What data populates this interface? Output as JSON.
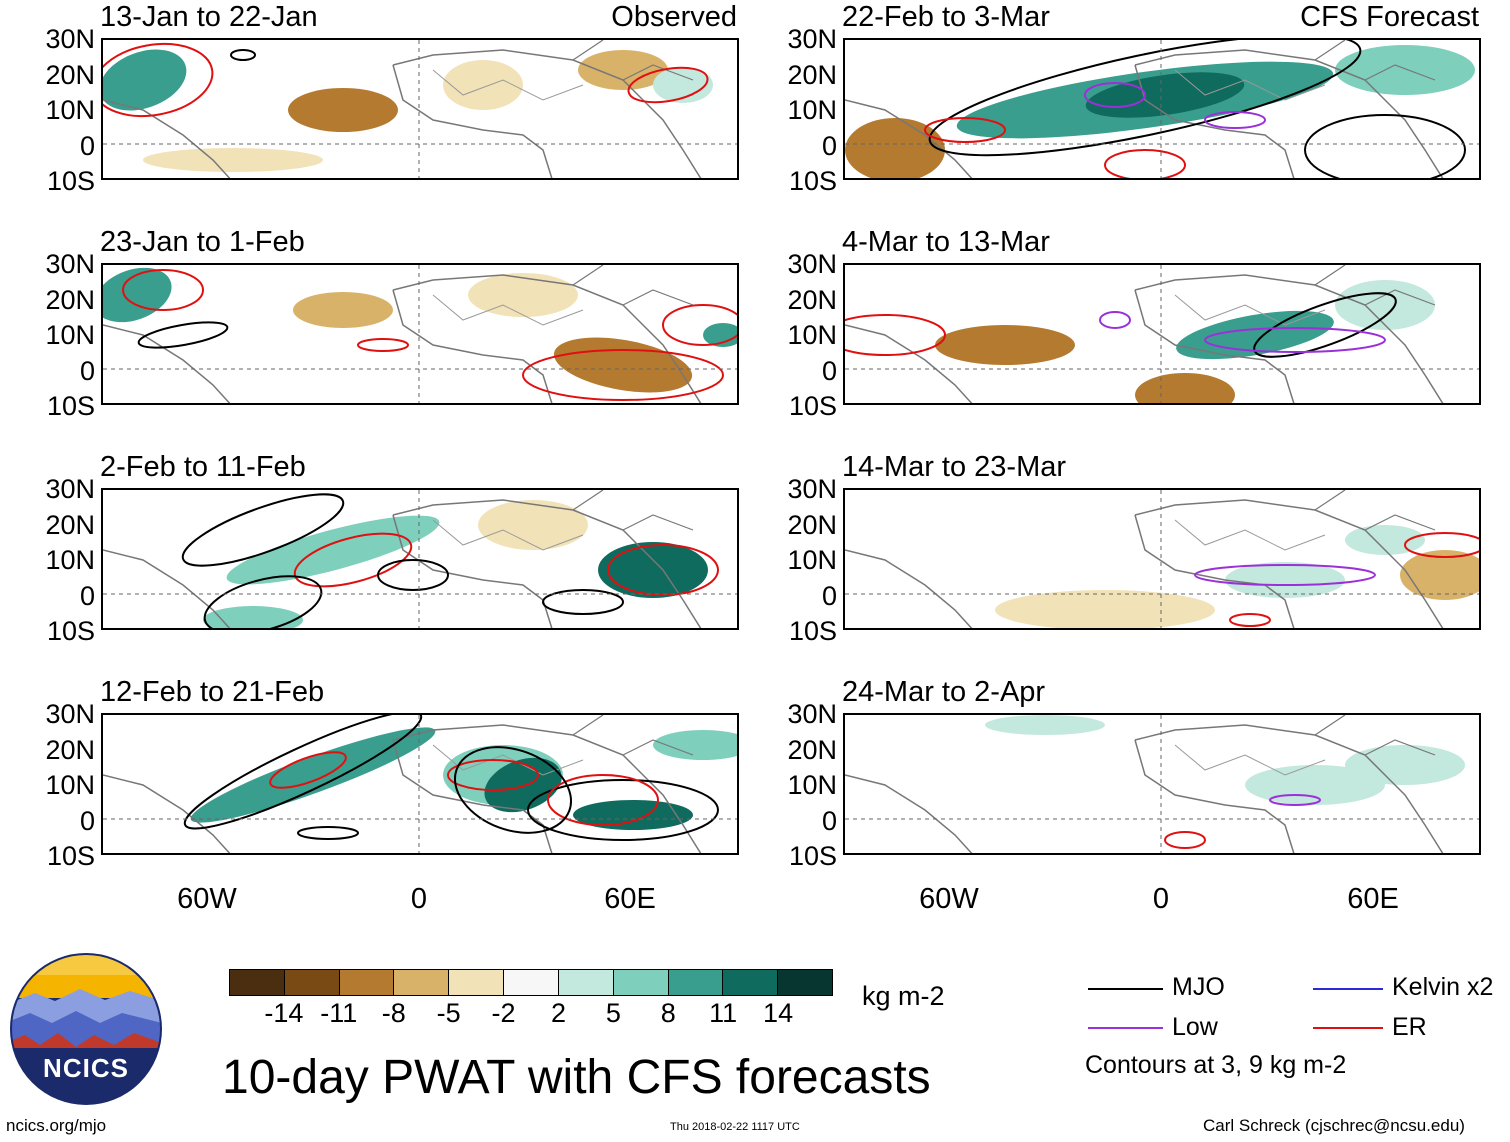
{
  "panels_left": [
    {
      "title": "13-Jan to 22-Jan",
      "tag": "Observed"
    },
    {
      "title": "23-Jan to 1-Feb",
      "tag": ""
    },
    {
      "title": "2-Feb to 11-Feb",
      "tag": ""
    },
    {
      "title": "12-Feb to 21-Feb",
      "tag": ""
    }
  ],
  "panels_right": [
    {
      "title": "22-Feb to 3-Mar",
      "tag": "CFS Forecast"
    },
    {
      "title": "4-Mar to 13-Mar",
      "tag": ""
    },
    {
      "title": "14-Mar to 23-Mar",
      "tag": ""
    },
    {
      "title": "24-Mar to 2-Apr",
      "tag": ""
    }
  ],
  "lat_labels": [
    "30N",
    "20N",
    "10N",
    "0",
    "10S"
  ],
  "lon_labels": [
    "60W",
    "0",
    "60E"
  ],
  "colorbar": {
    "colors": [
      "#4a2e0f",
      "#7a4a14",
      "#b47a30",
      "#d9b26a",
      "#f2e2b8",
      "#f7f7f7",
      "#c3e8dd",
      "#7fcfbd",
      "#3a9e8e",
      "#0f6b5e",
      "#06362f"
    ],
    "ticks": [
      "-14",
      "-11",
      "-8",
      "-5",
      "-2",
      "2",
      "5",
      "8",
      "11",
      "14"
    ],
    "units": "kg m-2"
  },
  "legend": {
    "items": [
      {
        "label": "MJO",
        "color": "#000000"
      },
      {
        "label": "Kelvin x2",
        "color": "#2b2bd6"
      },
      {
        "label": "Low",
        "color": "#9b30d9"
      },
      {
        "label": "ER",
        "color": "#e01010"
      }
    ],
    "note": "Contours at 3, 9 kg m-2"
  },
  "logo_text": "NCICS",
  "main_title": "10-day PWAT with CFS forecasts",
  "footer": {
    "url": "ncics.org/mjo",
    "timestamp": "Thu 2018-02-22 1117 UTC",
    "author": "Carl Schreck (cjschrec@ncsu.edu)"
  }
}
